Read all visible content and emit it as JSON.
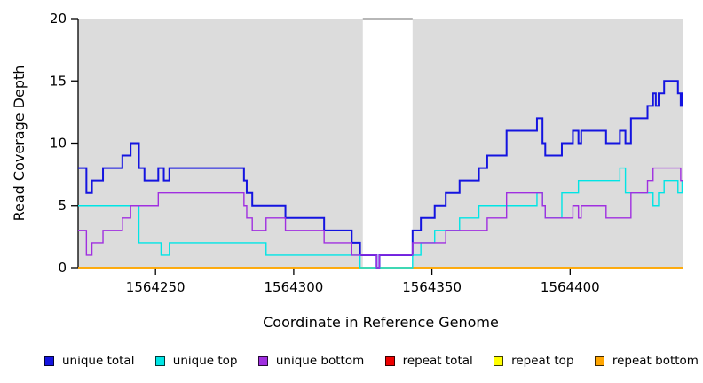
{
  "chart_data": {
    "type": "line",
    "step_mode": "after",
    "title": "",
    "xlabel": "Coordinate in Reference Genome",
    "ylabel": "Read Coverage Depth",
    "xlim": [
      1564222,
      1564441
    ],
    "ylim": [
      0,
      20
    ],
    "x_ticks": [
      1564250,
      1564300,
      1564350,
      1564400
    ],
    "y_ticks": [
      0,
      5,
      10,
      15,
      20
    ],
    "grid": false,
    "plot_bg_color": "#DCDCDC",
    "axis_color": "#000000",
    "gap_region": {
      "x_start": 1564325,
      "x_end": 1564343,
      "color": "#FFFFFF",
      "edge_color": "#8C8C8C"
    },
    "legend_position": "bottom",
    "series": [
      {
        "name": "repeat total",
        "color": "#EE0000",
        "width": 1.4,
        "points": [
          [
            1564222,
            0
          ],
          [
            1564441,
            0
          ]
        ]
      },
      {
        "name": "repeat top",
        "color": "#FFFF00",
        "width": 1.4,
        "points": [
          [
            1564222,
            0
          ],
          [
            1564441,
            0
          ]
        ]
      },
      {
        "name": "repeat bottom",
        "color": "#FFA500",
        "width": 1.6,
        "points": [
          [
            1564222,
            0
          ],
          [
            1564441,
            0
          ]
        ]
      },
      {
        "name": "unique total",
        "color": "#1414E0",
        "width": 2,
        "points": [
          [
            1564222,
            8
          ],
          [
            1564225,
            6
          ],
          [
            1564227,
            7
          ],
          [
            1564231,
            8
          ],
          [
            1564238,
            9
          ],
          [
            1564241,
            10
          ],
          [
            1564244,
            8
          ],
          [
            1564246,
            7
          ],
          [
            1564251,
            8
          ],
          [
            1564253,
            7
          ],
          [
            1564255,
            8
          ],
          [
            1564282,
            7
          ],
          [
            1564283,
            6
          ],
          [
            1564285,
            5
          ],
          [
            1564297,
            4
          ],
          [
            1564311,
            3
          ],
          [
            1564321,
            2
          ],
          [
            1564324,
            1
          ],
          [
            1564330,
            0
          ],
          [
            1564331,
            1
          ],
          [
            1564343,
            3
          ],
          [
            1564346,
            4
          ],
          [
            1564351,
            5
          ],
          [
            1564355,
            6
          ],
          [
            1564360,
            7
          ],
          [
            1564367,
            8
          ],
          [
            1564370,
            9
          ],
          [
            1564377,
            11
          ],
          [
            1564388,
            12
          ],
          [
            1564390,
            10
          ],
          [
            1564391,
            9
          ],
          [
            1564397,
            10
          ],
          [
            1564401,
            11
          ],
          [
            1564403,
            10
          ],
          [
            1564404,
            11
          ],
          [
            1564413,
            10
          ],
          [
            1564418,
            11
          ],
          [
            1564420,
            10
          ],
          [
            1564422,
            12
          ],
          [
            1564428,
            13
          ],
          [
            1564430,
            14
          ],
          [
            1564431,
            13
          ],
          [
            1564432,
            14
          ],
          [
            1564434,
            15
          ],
          [
            1564439,
            14
          ],
          [
            1564440,
            13
          ],
          [
            1564440.5,
            14
          ],
          [
            1564441,
            14
          ]
        ]
      },
      {
        "name": "unique top",
        "color": "#00E5E5",
        "width": 1.4,
        "points": [
          [
            1564222,
            5
          ],
          [
            1564244,
            2
          ],
          [
            1564252,
            1
          ],
          [
            1564255,
            2
          ],
          [
            1564290,
            1
          ],
          [
            1564324,
            0
          ],
          [
            1564343,
            1
          ],
          [
            1564346,
            2
          ],
          [
            1564351,
            3
          ],
          [
            1564360,
            4
          ],
          [
            1564367,
            5
          ],
          [
            1564388,
            6
          ],
          [
            1564390,
            5
          ],
          [
            1564391,
            4
          ],
          [
            1564397,
            6
          ],
          [
            1564403,
            7
          ],
          [
            1564418,
            8
          ],
          [
            1564420,
            6
          ],
          [
            1564430,
            5
          ],
          [
            1564432,
            6
          ],
          [
            1564434,
            7
          ],
          [
            1564439,
            6
          ],
          [
            1564440.5,
            7
          ],
          [
            1564441,
            7
          ]
        ]
      },
      {
        "name": "unique bottom",
        "color": "#A02FE0",
        "width": 1.4,
        "points": [
          [
            1564222,
            3
          ],
          [
            1564225,
            1
          ],
          [
            1564227,
            2
          ],
          [
            1564231,
            3
          ],
          [
            1564238,
            4
          ],
          [
            1564241,
            5
          ],
          [
            1564251,
            6
          ],
          [
            1564282,
            5
          ],
          [
            1564283,
            4
          ],
          [
            1564285,
            3
          ],
          [
            1564290,
            4
          ],
          [
            1564297,
            3
          ],
          [
            1564311,
            2
          ],
          [
            1564321,
            1
          ],
          [
            1564330,
            0
          ],
          [
            1564331,
            1
          ],
          [
            1564343,
            2
          ],
          [
            1564355,
            3
          ],
          [
            1564370,
            4
          ],
          [
            1564377,
            6
          ],
          [
            1564390,
            5
          ],
          [
            1564391,
            4
          ],
          [
            1564401,
            5
          ],
          [
            1564403,
            4
          ],
          [
            1564404,
            5
          ],
          [
            1564413,
            4
          ],
          [
            1564422,
            6
          ],
          [
            1564428,
            7
          ],
          [
            1564430,
            8
          ],
          [
            1564440,
            7
          ],
          [
            1564441,
            7
          ]
        ]
      }
    ],
    "legend": [
      {
        "label": "unique total",
        "color": "#1414E0"
      },
      {
        "label": "unique top",
        "color": "#00E5E5"
      },
      {
        "label": "unique bottom",
        "color": "#A02FE0"
      },
      {
        "label": "repeat total",
        "color": "#EE0000"
      },
      {
        "label": "repeat top",
        "color": "#FFFF00"
      },
      {
        "label": "repeat bottom",
        "color": "#FFA500"
      }
    ]
  },
  "layout_text": {
    "y_axis_label": "Read Coverage Depth",
    "x_axis_label": "Coordinate in Reference Genome"
  }
}
